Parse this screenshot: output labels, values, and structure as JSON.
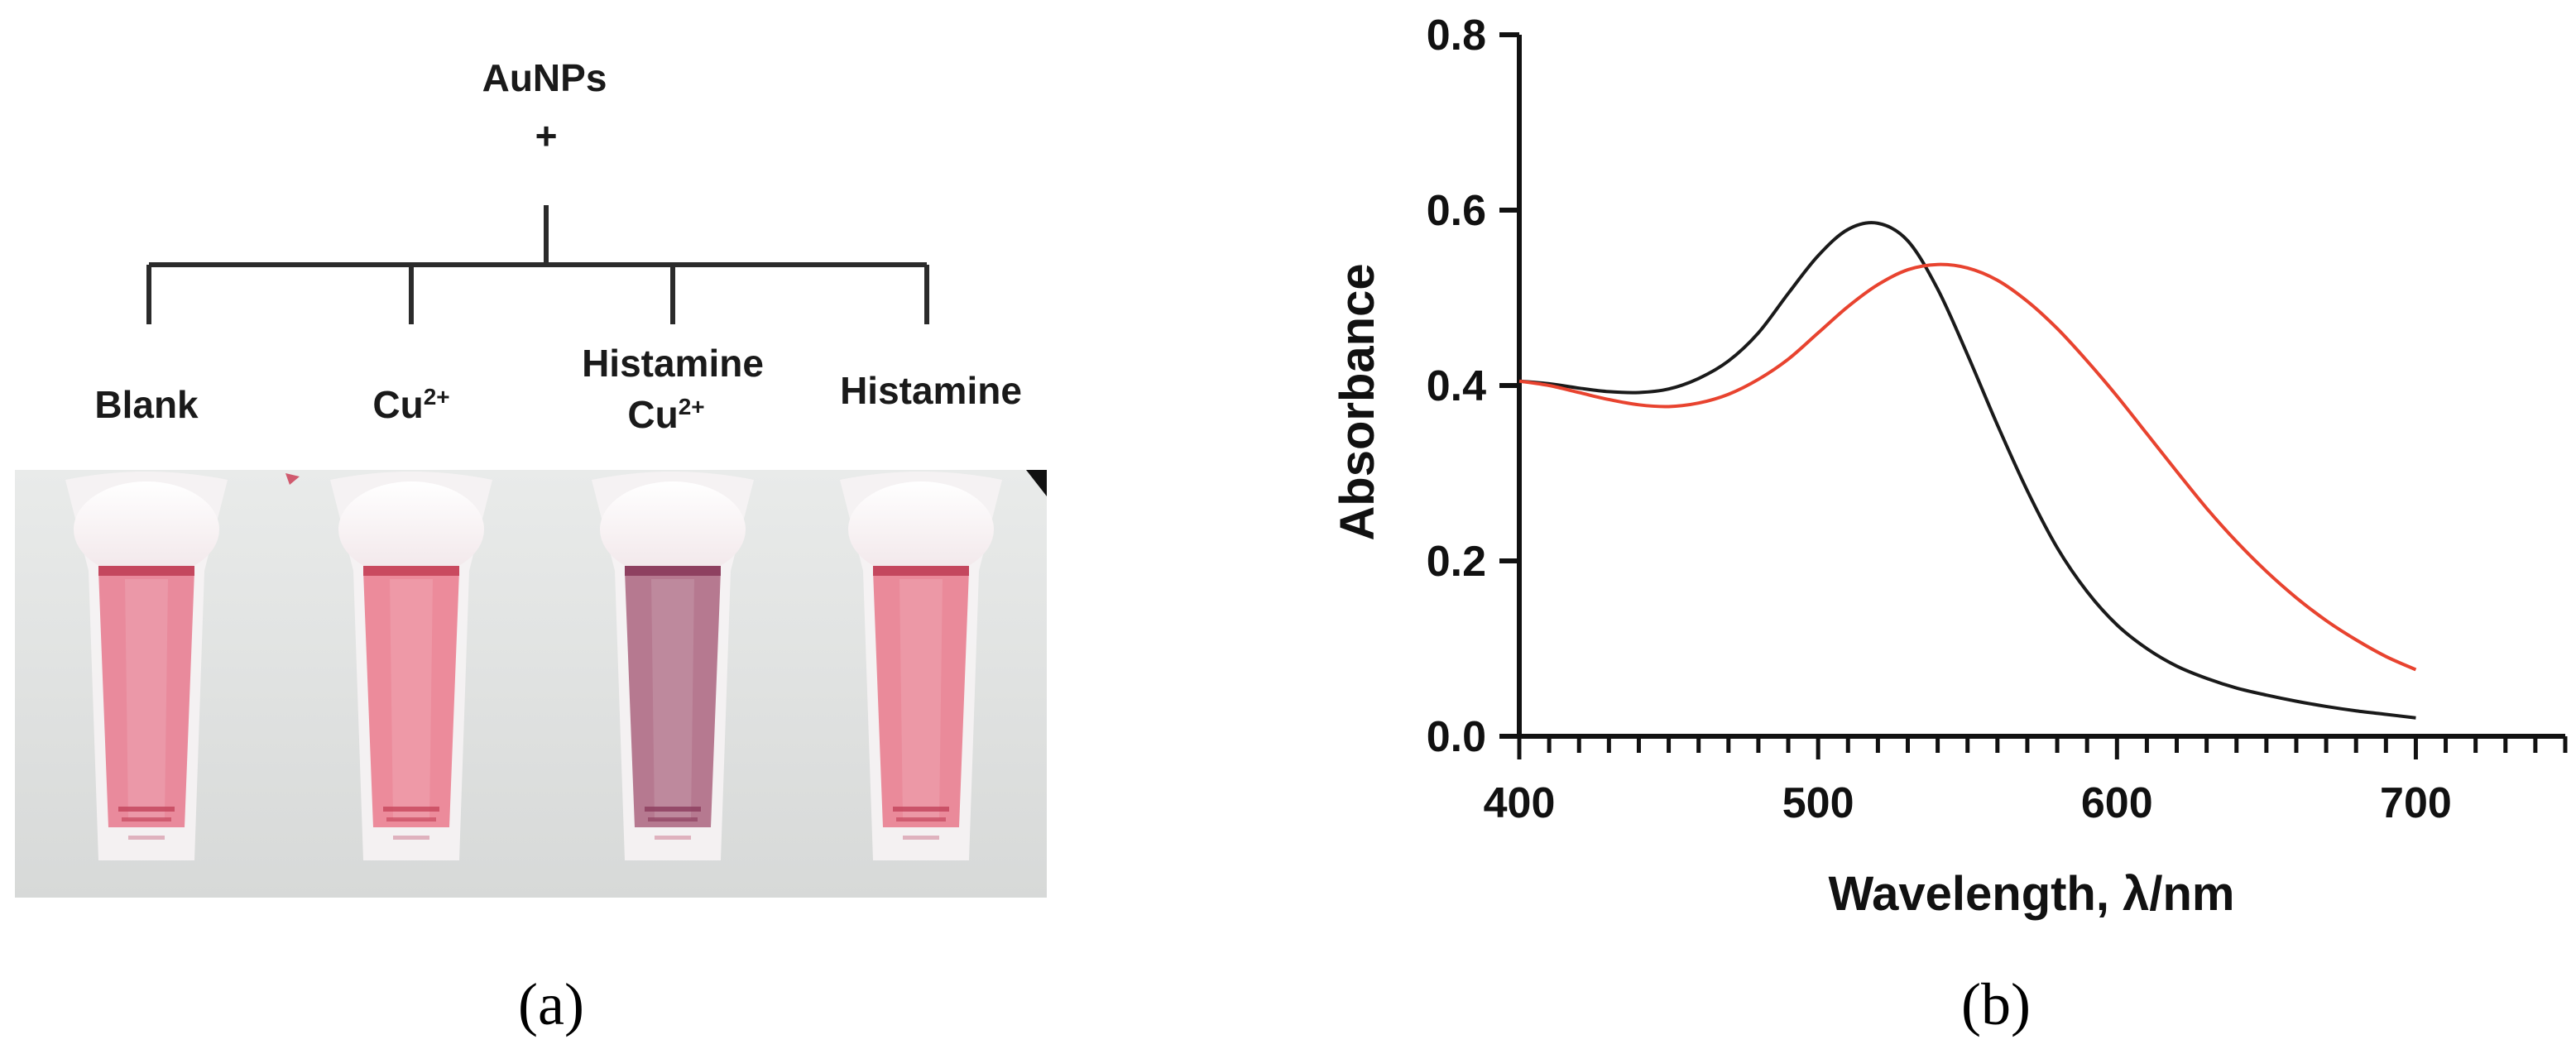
{
  "panel_a": {
    "label": "(a)",
    "root_line1": "AuNPs",
    "root_line2": "+",
    "tubes": [
      {
        "label": "Blank",
        "label2": "",
        "color": "#e98a9c",
        "rim": "#c4475e"
      },
      {
        "label": "Cu",
        "sup": "2+",
        "label2": "",
        "color": "#ec8b9b",
        "rim": "#c94a5f"
      },
      {
        "label": "Histamine",
        "label2": "Cu",
        "sup2": "2+",
        "color": "#b67990",
        "rim": "#8e4060"
      },
      {
        "label": "Histamine",
        "label2": "",
        "color": "#ea8a9a",
        "rim": "#c4475e"
      }
    ]
  },
  "panel_b": {
    "label": "(b)"
  },
  "chart_data": {
    "type": "line",
    "xlabel": "Wavelength, λ/nm",
    "ylabel": "Absorbance",
    "xlim": [
      400,
      750
    ],
    "ylim": [
      0.0,
      0.8
    ],
    "xticks": [
      400,
      500,
      600,
      700
    ],
    "yticks": [
      0.0,
      0.2,
      0.4,
      0.6,
      0.8
    ],
    "x_minor_step": 10,
    "grid": false,
    "series": [
      {
        "color": "#1a1a1a",
        "x": [
          400,
          410,
          420,
          430,
          440,
          450,
          460,
          470,
          480,
          490,
          500,
          510,
          520,
          530,
          540,
          550,
          560,
          570,
          580,
          590,
          600,
          610,
          620,
          630,
          640,
          650,
          660,
          670,
          680,
          690,
          700
        ],
        "y": [
          0.405,
          0.402,
          0.397,
          0.393,
          0.392,
          0.396,
          0.408,
          0.428,
          0.46,
          0.505,
          0.548,
          0.578,
          0.585,
          0.565,
          0.51,
          0.435,
          0.355,
          0.28,
          0.215,
          0.165,
          0.127,
          0.1,
          0.08,
          0.066,
          0.055,
          0.047,
          0.04,
          0.034,
          0.029,
          0.025,
          0.021
        ]
      },
      {
        "color": "#e8432f",
        "x": [
          400,
          410,
          420,
          430,
          440,
          450,
          460,
          470,
          480,
          490,
          500,
          510,
          520,
          530,
          540,
          550,
          560,
          570,
          580,
          590,
          600,
          610,
          620,
          630,
          640,
          650,
          660,
          670,
          680,
          690,
          700
        ],
        "y": [
          0.405,
          0.4,
          0.392,
          0.384,
          0.378,
          0.376,
          0.38,
          0.39,
          0.407,
          0.43,
          0.46,
          0.49,
          0.515,
          0.532,
          0.538,
          0.534,
          0.52,
          0.496,
          0.465,
          0.428,
          0.388,
          0.345,
          0.302,
          0.26,
          0.222,
          0.188,
          0.158,
          0.132,
          0.11,
          0.091,
          0.076
        ]
      }
    ]
  }
}
